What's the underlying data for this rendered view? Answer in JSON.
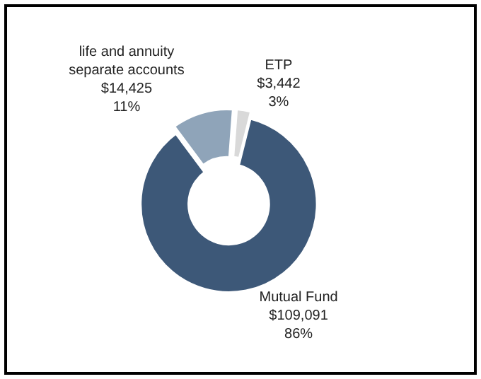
{
  "chart_data": {
    "type": "donut",
    "categories": [
      "Mutual Fund",
      "life and annuity separate accounts",
      "ETP"
    ],
    "values": [
      109091,
      14425,
      3442
    ],
    "value_labels": [
      "$109,091\n86%",
      "$14,425\n11%",
      "$3,442\n3%"
    ],
    "colors": [
      "#3d5878",
      "#8fa4b9",
      "#d9d9d9"
    ],
    "legend": false
  }
}
